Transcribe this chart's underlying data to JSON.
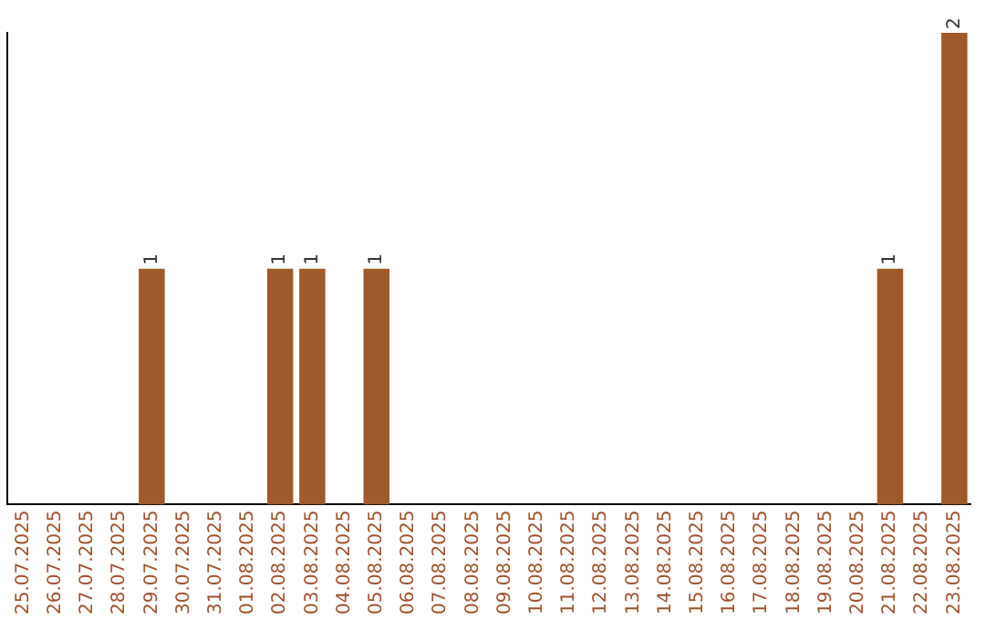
{
  "chart_data": {
    "type": "bar",
    "categories": [
      "25.07.2025",
      "26.07.2025",
      "27.07.2025",
      "28.07.2025",
      "29.07.2025",
      "30.07.2025",
      "31.07.2025",
      "01.08.2025",
      "02.08.2025",
      "03.08.2025",
      "04.08.2025",
      "05.08.2025",
      "06.08.2025",
      "07.08.2025",
      "08.08.2025",
      "09.08.2025",
      "10.08.2025",
      "11.08.2025",
      "12.08.2025",
      "13.08.2025",
      "14.08.2025",
      "15.08.2025",
      "16.08.2025",
      "17.08.2025",
      "18.08.2025",
      "19.08.2025",
      "20.08.2025",
      "21.08.2025",
      "22.08.2025",
      "23.08.2025"
    ],
    "values": [
      0,
      0,
      0,
      0,
      1,
      0,
      0,
      0,
      1,
      1,
      0,
      1,
      0,
      0,
      0,
      0,
      0,
      0,
      0,
      0,
      0,
      0,
      0,
      0,
      0,
      0,
      0,
      1,
      0,
      2
    ],
    "value_labels": [
      null,
      null,
      null,
      null,
      "1",
      null,
      null,
      null,
      "1",
      "1",
      null,
      "1",
      null,
      null,
      null,
      null,
      null,
      null,
      null,
      null,
      null,
      null,
      null,
      null,
      null,
      null,
      null,
      "1",
      null,
      "2"
    ],
    "color": "#a0592a",
    "grid": false,
    "legend": false,
    "tick_labels": "x"
  }
}
